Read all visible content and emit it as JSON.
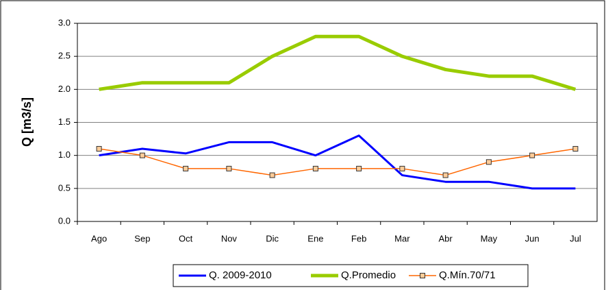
{
  "chart_data": {
    "type": "line",
    "y_label": "Q [m3/s]",
    "categories": [
      "Ago",
      "Sep",
      "Oct",
      "Nov",
      "Dic",
      "Ene",
      "Feb",
      "Mar",
      "Abr",
      "May",
      "Jun",
      "Jul"
    ],
    "series": [
      {
        "name": "Q. 2009-2010",
        "color": "#0000ff",
        "width": 3,
        "marker": false,
        "values": [
          1.0,
          1.1,
          1.03,
          1.2,
          1.2,
          1.0,
          1.3,
          0.7,
          0.6,
          0.6,
          0.5,
          0.5
        ]
      },
      {
        "name": "Q.Promedio",
        "color": "#99cc00",
        "width": 5,
        "marker": false,
        "values": [
          2.0,
          2.1,
          2.1,
          2.1,
          2.5,
          2.8,
          2.8,
          2.5,
          2.3,
          2.2,
          2.2,
          2.0
        ]
      },
      {
        "name": "Q.Mín.70/71",
        "color": "#ff6600",
        "width": 1.5,
        "marker": true,
        "values": [
          1.1,
          1.0,
          0.8,
          0.8,
          0.7,
          0.8,
          0.8,
          0.8,
          0.7,
          0.9,
          1.0,
          1.1
        ]
      }
    ],
    "ylim": [
      0,
      3
    ],
    "yticks": [
      {
        "value": 0,
        "label": "0.0"
      },
      {
        "value": 0.5,
        "label": "0.5"
      },
      {
        "value": 1,
        "label": "1.0"
      },
      {
        "value": 1.5,
        "label": "1.5"
      },
      {
        "value": 2,
        "label": "2.0"
      },
      {
        "value": 2.5,
        "label": "2.5"
      },
      {
        "value": 3,
        "label": "3.0"
      }
    ],
    "grid": true,
    "legend": "bottom"
  }
}
